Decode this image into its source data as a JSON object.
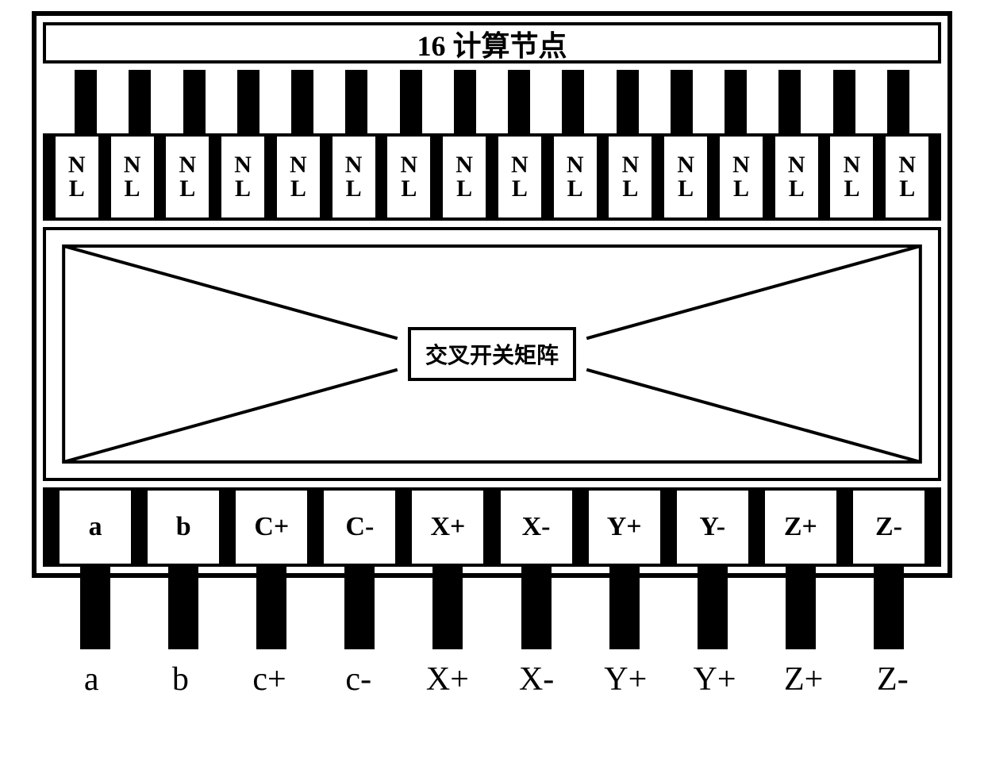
{
  "diagram": {
    "title": "16 计算节点",
    "nl_count": 16,
    "nl_top": "N",
    "nl_bottom": "L",
    "switch_label": "交叉开关矩阵",
    "ports": [
      "a",
      "b",
      "C+",
      "C-",
      "X+",
      "X-",
      "Y+",
      "Y-",
      "Z+",
      "Z-"
    ],
    "external_labels": [
      "a",
      "b",
      "c+",
      "c-",
      "X+",
      "X-",
      "Y+",
      "Y+",
      "Z+",
      "Z-"
    ],
    "colors": {
      "stroke": "#000000",
      "fill": "#ffffff",
      "connector": "#000000"
    },
    "stroke_width_outer": 6,
    "stroke_width_inner": 4,
    "title_fontsize": 36,
    "nl_fontsize": 30,
    "port_fontsize": 34,
    "switch_fontsize": 28,
    "ext_fontsize": 42
  }
}
